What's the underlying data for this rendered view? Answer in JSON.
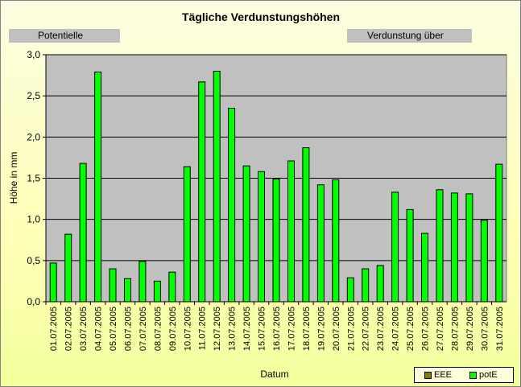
{
  "chart_data": {
    "type": "bar",
    "title": "Tägliche Verdunstungshöhen",
    "subtitle_left": "Potentielle",
    "subtitle_right": "Verdunstung über",
    "xlabel": "Datum",
    "ylabel": "Höhe in mm",
    "ylim": [
      0,
      3.0
    ],
    "yticks": [
      "0,0",
      "0,5",
      "1,0",
      "1,5",
      "2,0",
      "2,5",
      "3,0"
    ],
    "ytick_values": [
      0,
      0.5,
      1.0,
      1.5,
      2.0,
      2.5,
      3.0
    ],
    "grid": true,
    "legend_position": "bottom-right",
    "categories": [
      "01.07.2005",
      "02.07.2005",
      "03.07.2005",
      "04.07.2005",
      "05.07.2005",
      "06.07.2005",
      "07.07.2005",
      "08.07.2005",
      "09.07.2005",
      "10.07.2005",
      "11.07.2005",
      "12.07.2005",
      "13.07.2005",
      "14.07.2005",
      "15.07.2005",
      "16.07.2005",
      "17.07.2005",
      "18.07.2005",
      "19.07.2005",
      "20.07.2005",
      "21.07.2005",
      "22.07.2005",
      "23.07.2005",
      "24.07.2005",
      "25.07.2005",
      "26.07.2005",
      "27.07.2005",
      "28.07.2005",
      "29.07.2005",
      "30.07.2005",
      "31.07.2005"
    ],
    "series": [
      {
        "name": "EEE",
        "color": "#808000",
        "values": [
          0,
          0,
          0,
          0,
          0,
          0,
          0,
          0,
          0,
          0,
          0,
          0,
          0,
          0,
          0,
          0,
          0,
          0,
          0,
          0,
          0,
          0,
          0,
          0,
          0,
          0,
          0,
          0,
          0,
          0,
          0
        ]
      },
      {
        "name": "potE",
        "color": "#00ff00",
        "values": [
          0.47,
          0.82,
          1.68,
          2.79,
          0.4,
          0.28,
          0.49,
          0.25,
          0.36,
          1.64,
          2.67,
          2.8,
          2.35,
          1.65,
          1.58,
          1.49,
          1.71,
          1.87,
          1.42,
          1.48,
          0.29,
          0.4,
          0.44,
          1.33,
          1.12,
          0.83,
          1.36,
          1.32,
          1.31,
          0.99,
          1.67
        ]
      }
    ]
  },
  "colors": {
    "plot_bg": "#c0c0c0",
    "grid": "#000000",
    "bar_main": "#00ff00"
  }
}
